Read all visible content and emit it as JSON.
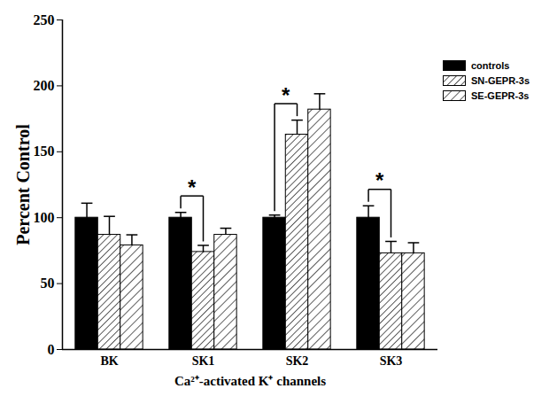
{
  "chart_data": {
    "type": "bar",
    "y_label": "Percent Control",
    "x_label": "Ca²⁺-activated K⁺ channels",
    "categories": [
      "BK",
      "SK1",
      "SK2",
      "SK3"
    ],
    "series": [
      {
        "name": "controls",
        "color": "#000000",
        "values": [
          100,
          100,
          100,
          100
        ],
        "errors": [
          11,
          4,
          2,
          9
        ]
      },
      {
        "name": "SN-GEPR-3s",
        "color": "#333333",
        "values": [
          87,
          74,
          163,
          73
        ],
        "errors": [
          14,
          5,
          11,
          9
        ]
      },
      {
        "name": "SE-GEPR-3s",
        "color": "#333333",
        "values": [
          79,
          87,
          182,
          73
        ],
        "errors": [
          8,
          5,
          12,
          8
        ]
      }
    ],
    "ylim": [
      0,
      250
    ],
    "yticks": [
      0,
      50,
      100,
      150,
      200,
      250
    ],
    "grid": false,
    "legend": "top-right",
    "annotations": [
      {
        "category": "SK1",
        "from": "controls",
        "to": "SN-GEPR-3s",
        "label": "*"
      },
      {
        "category": "SK2",
        "from": "controls",
        "to": "SN-GEPR-3s",
        "label": "*"
      },
      {
        "category": "SK3",
        "from": "controls",
        "to": "SN-GEPR-3s",
        "label": "*"
      }
    ]
  }
}
